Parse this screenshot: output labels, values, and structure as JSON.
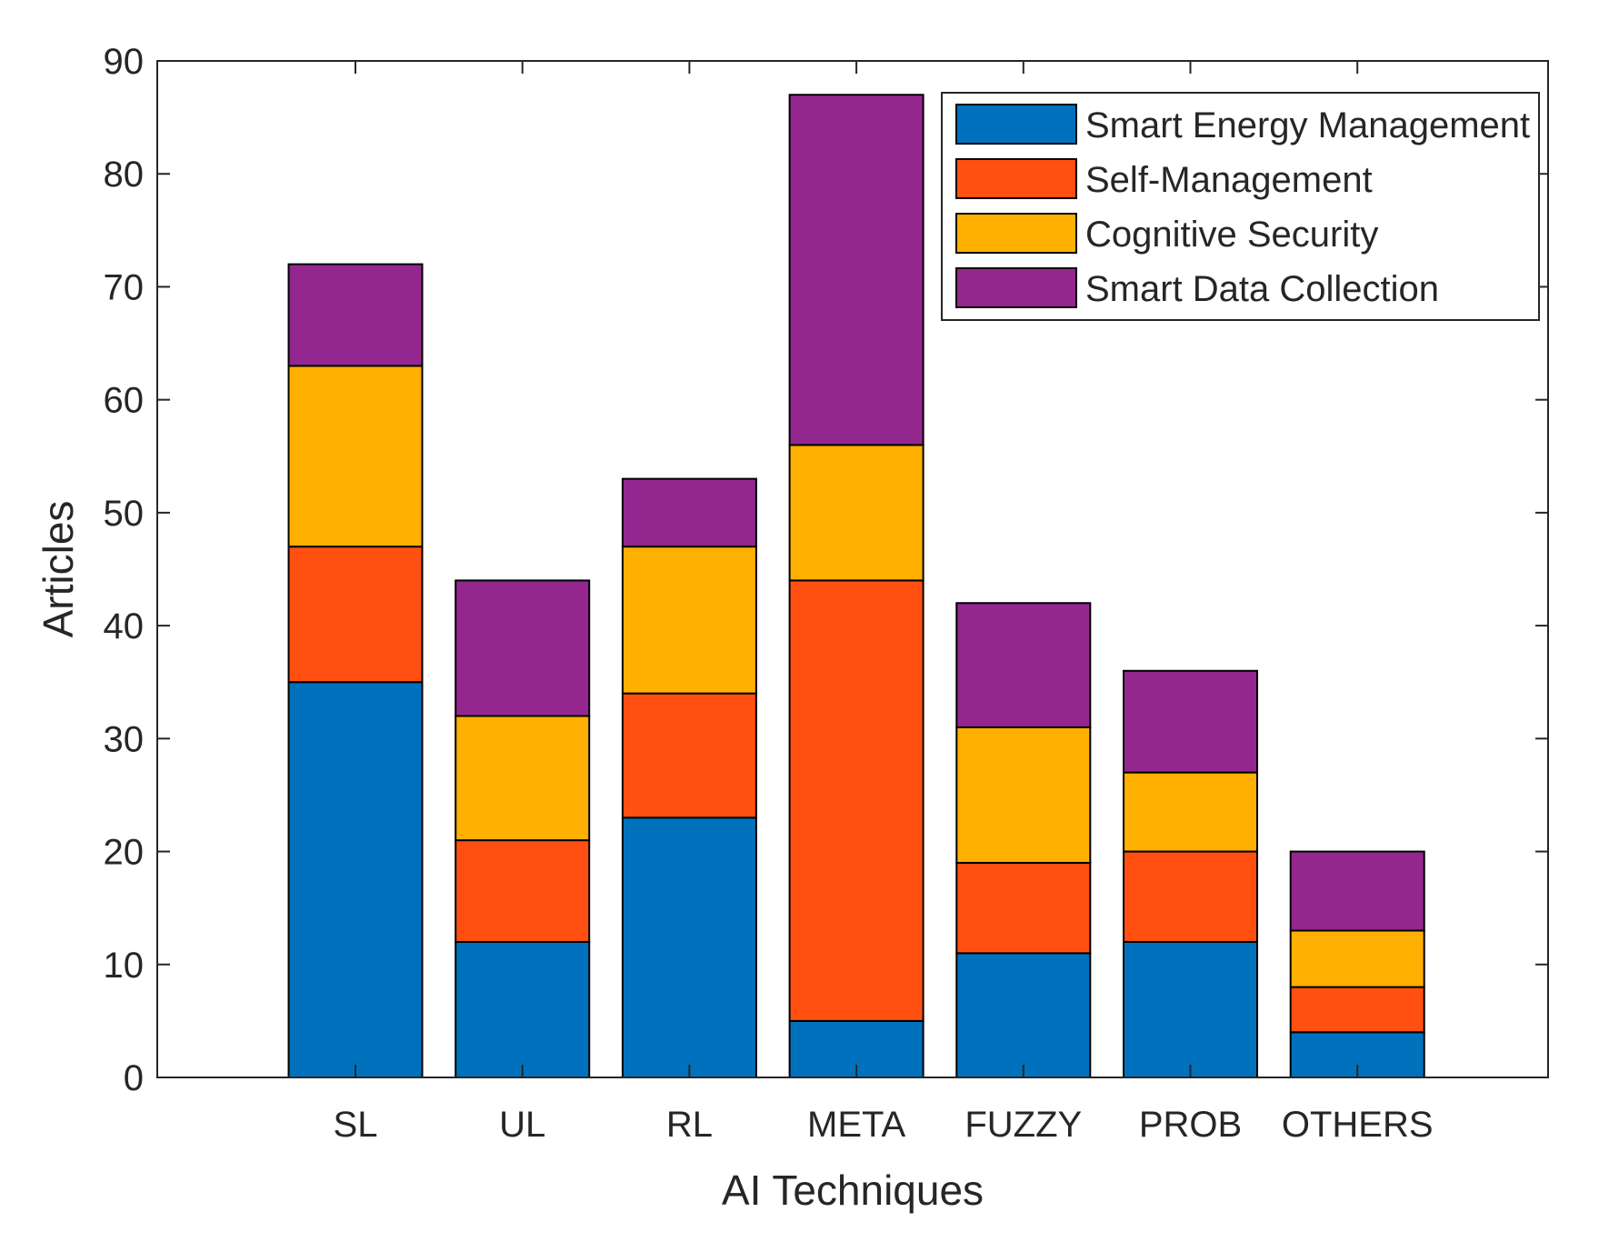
{
  "chart_data": {
    "type": "bar",
    "stacked": true,
    "title": "",
    "xlabel": "AI Techniques",
    "ylabel": "Articles",
    "ylim": [
      0,
      90
    ],
    "yticks": [
      0,
      10,
      20,
      30,
      40,
      50,
      60,
      70,
      80,
      90
    ],
    "categories": [
      "SL",
      "UL",
      "RL",
      "META",
      "FUZZY",
      "PROB",
      "OTHERS"
    ],
    "series": [
      {
        "name": "Smart Energy Management",
        "color": "#0072BD",
        "values": [
          35,
          12,
          23,
          5,
          11,
          12,
          4
        ]
      },
      {
        "name": "Self-Management",
        "color": "#FF5011",
        "values": [
          12,
          9,
          11,
          39,
          8,
          8,
          4
        ]
      },
      {
        "name": "Cognitive Security",
        "color": "#FFB000",
        "values": [
          16,
          11,
          13,
          12,
          12,
          7,
          5
        ]
      },
      {
        "name": "Smart Data Collection",
        "color": "#93278F",
        "values": [
          9,
          12,
          6,
          31,
          11,
          9,
          7
        ]
      }
    ],
    "legend_position": "top-right",
    "grid": false
  }
}
